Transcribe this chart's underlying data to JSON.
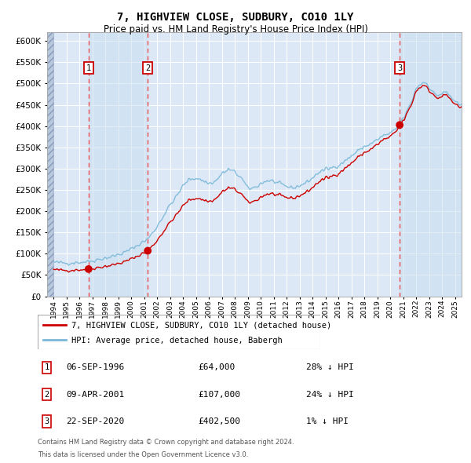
{
  "title": "7, HIGHVIEW CLOSE, SUDBURY, CO10 1LY",
  "subtitle": "Price paid vs. HM Land Registry's House Price Index (HPI)",
  "legend_property": "7, HIGHVIEW CLOSE, SUDBURY, CO10 1LY (detached house)",
  "legend_hpi": "HPI: Average price, detached house, Babergh",
  "footer_line1": "Contains HM Land Registry data © Crown copyright and database right 2024.",
  "footer_line2": "This data is licensed under the Open Government Licence v3.0.",
  "transactions": [
    {
      "num": 1,
      "date": "06-SEP-1996",
      "price": 64000,
      "pct": "28%",
      "dir": "↓",
      "year": 1996.7
    },
    {
      "num": 2,
      "date": "09-APR-2001",
      "price": 107000,
      "pct": "24%",
      "dir": "↓",
      "year": 2001.27
    },
    {
      "num": 3,
      "date": "22-SEP-2020",
      "price": 402500,
      "pct": "1%",
      "dir": "↓",
      "year": 2020.72
    }
  ],
  "hpi_color": "#7ab8d9",
  "property_color": "#cc0000",
  "dashed_color": "#ee3333",
  "bg_color": "#dce8f5",
  "hatch_color": "#b8c8dc",
  "highlight_color": "#c8ddf0",
  "ylim": [
    0,
    620000
  ],
  "xlim_start": 1993.5,
  "xlim_end": 2025.5,
  "xtick_start": 1994,
  "xtick_end": 2026
}
